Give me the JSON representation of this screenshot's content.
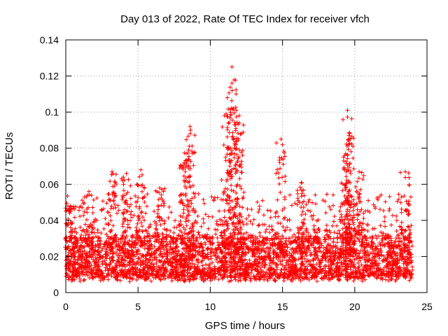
{
  "chart_data": {
    "type": "scatter",
    "title": "Day 013 of 2022, Rate Of TEC Index for receiver vfch",
    "xlabel": "GPS time / hours",
    "ylabel": "ROTI / TECUs",
    "xlim": [
      0,
      25
    ],
    "ylim": [
      0,
      0.14
    ],
    "xticks": [
      0,
      5,
      10,
      15,
      20,
      25
    ],
    "yticks": [
      0,
      0.02,
      0.04,
      0.06,
      0.08,
      0.1,
      0.12,
      0.14
    ],
    "xtick_labels": [
      "0",
      "5",
      "10",
      "15",
      "20",
      "25"
    ],
    "ytick_labels": [
      "0",
      "0.02",
      "0.04",
      "0.06",
      "0.08",
      "0.1",
      "0.12",
      "0.14"
    ],
    "grid": true,
    "marker": "+",
    "series_color": "#ff0000",
    "series": [
      {
        "name": "ROTI",
        "x_range": [
          0,
          24
        ],
        "baseline_band": [
          0.008,
          0.03
        ],
        "note": "dense cloud of points between ~0.005 and ~0.035 across all hours; peaks listed below",
        "peaks": [
          {
            "x": 0.3,
            "y": 0.048
          },
          {
            "x": 1.6,
            "y": 0.056
          },
          {
            "x": 3.2,
            "y": 0.067
          },
          {
            "x": 4.2,
            "y": 0.066
          },
          {
            "x": 5.2,
            "y": 0.068
          },
          {
            "x": 6.5,
            "y": 0.058
          },
          {
            "x": 8.2,
            "y": 0.072
          },
          {
            "x": 8.5,
            "y": 0.079
          },
          {
            "x": 8.6,
            "y": 0.092
          },
          {
            "x": 11.1,
            "y": 0.099
          },
          {
            "x": 11.5,
            "y": 0.125
          },
          {
            "x": 11.5,
            "y": 0.116
          },
          {
            "x": 11.6,
            "y": 0.102
          },
          {
            "x": 12.0,
            "y": 0.098
          },
          {
            "x": 12.0,
            "y": 0.094
          },
          {
            "x": 14.9,
            "y": 0.085
          },
          {
            "x": 16.3,
            "y": 0.061
          },
          {
            "x": 19.5,
            "y": 0.101
          },
          {
            "x": 19.6,
            "y": 0.087
          },
          {
            "x": 19.5,
            "y": 0.076
          },
          {
            "x": 19.4,
            "y": 0.067
          },
          {
            "x": 20.3,
            "y": 0.067
          },
          {
            "x": 23.5,
            "y": 0.067
          }
        ]
      }
    ]
  }
}
